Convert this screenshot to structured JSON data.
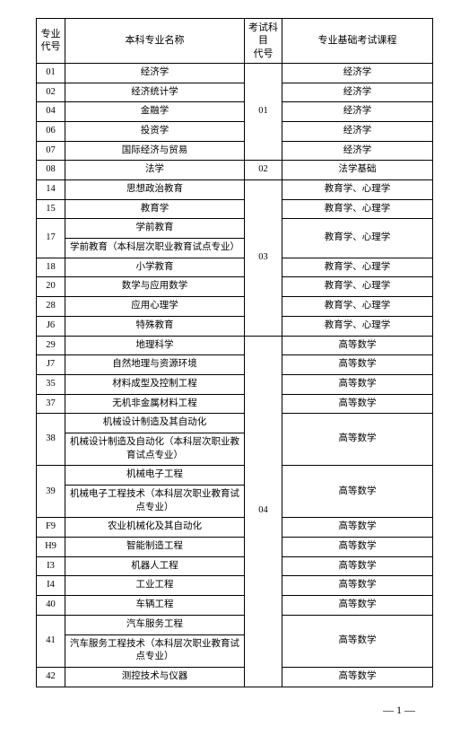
{
  "headers": {
    "col1": "专业\n代号",
    "col2": "本科专业名称",
    "col3": "考试科目\n代号",
    "col4": "专业基础考试课程"
  },
  "groups": [
    {
      "exam_code": "01",
      "rows": [
        {
          "code": "01",
          "majors": [
            "经济学"
          ],
          "courses": [
            "经济学"
          ]
        },
        {
          "code": "02",
          "majors": [
            "经济统计学"
          ],
          "courses": [
            "经济学"
          ]
        },
        {
          "code": "04",
          "majors": [
            "金融学"
          ],
          "courses": [
            "经济学"
          ]
        },
        {
          "code": "06",
          "majors": [
            "投资学"
          ],
          "courses": [
            "经济学"
          ]
        },
        {
          "code": "07",
          "majors": [
            "国际经济与贸易"
          ],
          "courses": [
            "经济学"
          ]
        }
      ]
    },
    {
      "exam_code": "02",
      "rows": [
        {
          "code": "08",
          "majors": [
            "法学"
          ],
          "courses": [
            "法学基础"
          ]
        }
      ]
    },
    {
      "exam_code": "03",
      "rows": [
        {
          "code": "14",
          "majors": [
            "思想政治教育"
          ],
          "courses": [
            "教育学、心理学"
          ]
        },
        {
          "code": "15",
          "majors": [
            "教育学"
          ],
          "courses": [
            "教育学、心理学"
          ]
        },
        {
          "code": "17",
          "majors": [
            "学前教育",
            "学前教育（本科层次职业教育试点专业）"
          ],
          "courses": [
            "教育学、心理学"
          ]
        },
        {
          "code": "18",
          "majors": [
            "小学教育"
          ],
          "courses": [
            "教育学、心理学"
          ]
        },
        {
          "code": "20",
          "majors": [
            "数学与应用数学"
          ],
          "courses": [
            "教育学、心理学"
          ]
        },
        {
          "code": "28",
          "majors": [
            "应用心理学"
          ],
          "courses": [
            "教育学、心理学"
          ]
        },
        {
          "code": "J6",
          "majors": [
            "特殊教育"
          ],
          "courses": [
            "教育学、心理学"
          ]
        }
      ]
    },
    {
      "exam_code": "04",
      "rows": [
        {
          "code": "29",
          "majors": [
            "地理科学"
          ],
          "courses": [
            "高等数学"
          ]
        },
        {
          "code": "J7",
          "majors": [
            "自然地理与资源环境"
          ],
          "courses": [
            "高等数学"
          ]
        },
        {
          "code": "35",
          "majors": [
            "材料成型及控制工程"
          ],
          "courses": [
            "高等数学"
          ]
        },
        {
          "code": "37",
          "majors": [
            "无机非金属材料工程"
          ],
          "courses": [
            "高等数学"
          ]
        },
        {
          "code": "38",
          "majors": [
            "机械设计制造及其自动化",
            "机械设计制造及自动化（本科层次职业教育试点专业）"
          ],
          "courses": [
            "高等数学"
          ]
        },
        {
          "code": "39",
          "majors": [
            "机械电子工程",
            "机械电子工程技术（本科层次职业教育试点专业）"
          ],
          "courses": [
            "高等数学"
          ]
        },
        {
          "code": "F9",
          "majors": [
            "农业机械化及其自动化"
          ],
          "courses": [
            "高等数学"
          ]
        },
        {
          "code": "H9",
          "majors": [
            "智能制造工程"
          ],
          "courses": [
            "高等数学"
          ]
        },
        {
          "code": "I3",
          "majors": [
            "机器人工程"
          ],
          "courses": [
            "高等数学"
          ]
        },
        {
          "code": "I4",
          "majors": [
            "工业工程"
          ],
          "courses": [
            "高等数学"
          ]
        },
        {
          "code": "40",
          "majors": [
            "车辆工程"
          ],
          "courses": [
            "高等数学"
          ]
        },
        {
          "code": "41",
          "majors": [
            "汽车服务工程",
            "汽车服务工程技术（本科层次职业教育试点专业）"
          ],
          "courses": [
            "高等数学"
          ]
        },
        {
          "code": "42",
          "majors": [
            "测控技术与仪器"
          ],
          "courses": [
            "高等数学"
          ]
        }
      ]
    }
  ],
  "page_number": "— 1 —"
}
